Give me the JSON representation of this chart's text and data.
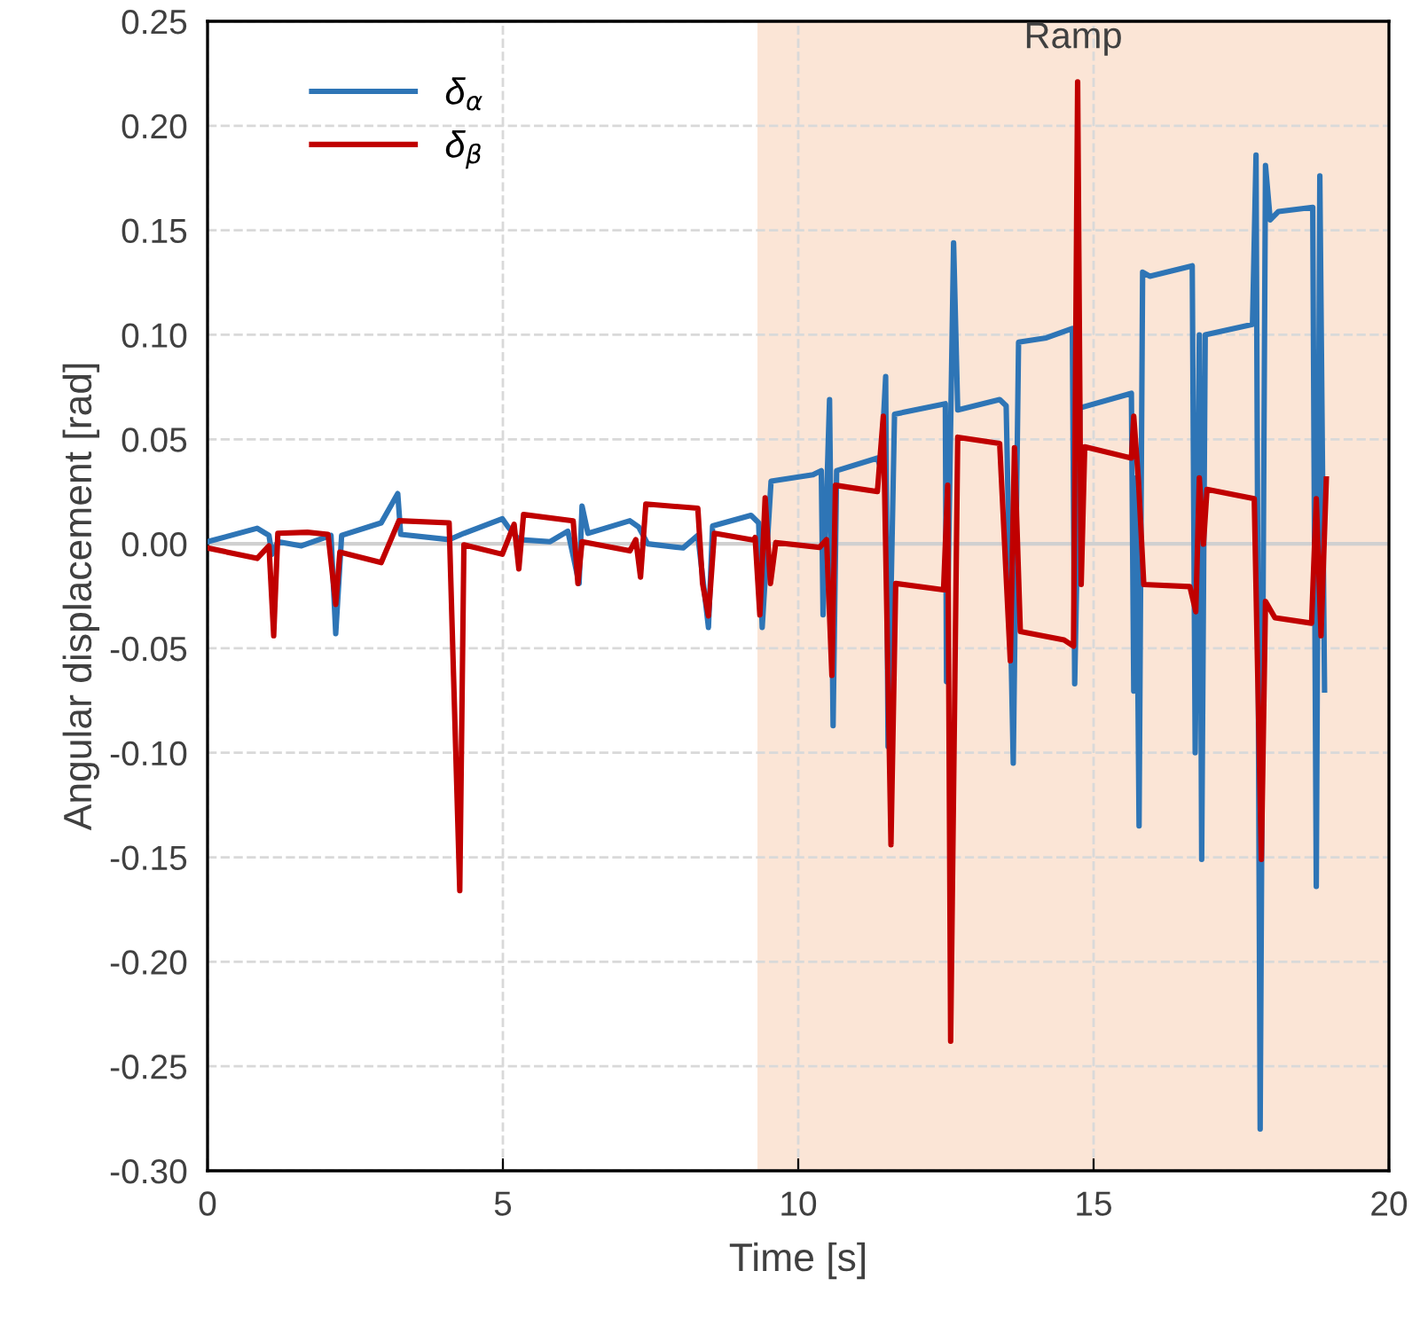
{
  "chart_data": {
    "type": "line",
    "xlabel": "Time [s]",
    "ylabel": "Angular displacement [rad]",
    "xlim": [
      0,
      20
    ],
    "xticks": [
      0,
      5,
      10,
      15,
      20
    ],
    "ylim": [
      -0.3,
      0.25
    ],
    "yticks": [
      {
        "value": -0.3,
        "label": "-0.30"
      },
      {
        "value": -0.25,
        "label": "-0.25"
      },
      {
        "value": -0.2,
        "label": "-0.20"
      },
      {
        "value": -0.15,
        "label": "-0.15"
      },
      {
        "value": -0.1,
        "label": "-0.10"
      },
      {
        "value": -0.05,
        "label": "-0.05"
      },
      {
        "value": 0,
        "label": "0.00"
      },
      {
        "value": 0.05,
        "label": "0.05"
      },
      {
        "value": 0.1,
        "label": "0.10"
      },
      {
        "value": 0.15,
        "label": "0.15"
      },
      {
        "value": 0.2,
        "label": "0.20"
      },
      {
        "value": 0.25,
        "label": "0.25"
      }
    ],
    "grid": true,
    "legend": "top left",
    "line_style": "solid",
    "marker": "none",
    "bands": [
      {
        "axis": "x",
        "from": 9.31,
        "to": 20,
        "label": "Ramp",
        "color": "#fbe5d6"
      }
    ],
    "ref_lines": [
      {
        "axis": "y",
        "value": 0,
        "label": null,
        "color": "#d0d0d0",
        "line_style": "solid"
      }
    ],
    "series": [
      {
        "name": "δ$_{α}$",
        "color": "#2e75b6",
        "x": [
          0,
          0.84,
          1.04,
          1.09,
          1.19,
          1.59,
          2.09,
          2.17,
          2.27,
          2.94,
          3.22,
          3.27,
          4.09,
          4.34,
          4.99,
          5.09,
          5.27,
          5.8,
          6.1,
          6.29,
          6.34,
          6.44,
          7.15,
          7.3,
          7.45,
          8.05,
          8.3,
          8.48,
          8.55,
          9.2,
          9.33,
          9.39,
          9.54,
          10.25,
          10.39,
          10.42,
          10.53,
          10.59,
          10.65,
          11.34,
          11.4,
          11.48,
          11.52,
          11.63,
          12.49,
          12.51,
          12.63,
          12.7,
          13.41,
          13.52,
          13.64,
          13.73,
          14.2,
          14.64,
          14.68,
          14.77,
          15.64,
          15.68,
          15.72,
          15.77,
          15.83,
          15.95,
          16.67,
          16.72,
          16.79,
          16.83,
          16.89,
          17.69,
          17.75,
          17.82,
          17.91,
          17.99,
          18.13,
          18.71,
          18.77,
          18.83,
          18.91
        ],
        "values": [
          0.001,
          0.0074,
          0.004,
          -0.005,
          0.001,
          -0.001,
          0.004,
          -0.043,
          0.004,
          0.01,
          0.024,
          0.0045,
          0.002,
          0.005,
          0.012,
          0.008,
          0.002,
          0.001,
          0.006,
          -0.019,
          0.018,
          0.005,
          0.011,
          0.008,
          0.0,
          -0.002,
          0.004,
          -0.04,
          0.0085,
          0.0136,
          0.01,
          -0.04,
          0.03,
          0.033,
          0.035,
          -0.034,
          0.069,
          -0.087,
          0.035,
          0.041,
          0.036,
          0.08,
          -0.097,
          0.062,
          0.067,
          -0.066,
          0.144,
          0.064,
          0.069,
          0.066,
          -0.105,
          0.0965,
          0.0985,
          0.103,
          -0.067,
          0.065,
          0.072,
          -0.0705,
          0.0315,
          -0.135,
          0.13,
          0.128,
          0.133,
          -0.1,
          0.1,
          -0.151,
          0.1,
          0.105,
          0.186,
          -0.28,
          0.181,
          0.155,
          0.159,
          0.161,
          -0.164,
          0.176,
          -0.07
        ]
      },
      {
        "name": "δ$_{β}$",
        "color": "#c00000",
        "x": [
          0,
          0.84,
          1.04,
          1.12,
          1.19,
          1.69,
          2.04,
          2.17,
          2.24,
          2.94,
          3.24,
          4.09,
          4.27,
          4.34,
          4.99,
          5.19,
          5.27,
          5.35,
          6.19,
          6.27,
          6.34,
          7.15,
          7.25,
          7.33,
          7.42,
          8.3,
          8.38,
          8.48,
          8.58,
          9.25,
          9.27,
          9.35,
          9.44,
          9.53,
          9.62,
          10.36,
          10.48,
          10.57,
          10.63,
          11.34,
          11.44,
          11.57,
          11.65,
          12.46,
          12.53,
          12.58,
          12.7,
          13.41,
          13.59,
          13.66,
          13.76,
          14.5,
          14.66,
          14.73,
          14.79,
          14.85,
          15.64,
          15.68,
          15.76,
          15.85,
          16.63,
          16.73,
          16.79,
          16.86,
          16.92,
          17.72,
          17.84,
          17.91,
          18.07,
          18.69,
          18.77,
          18.85,
          18.94
        ],
        "values": [
          -0.002,
          -0.007,
          -0.001,
          -0.044,
          0.005,
          0.0055,
          0.0045,
          -0.029,
          -0.004,
          -0.009,
          0.011,
          0.01,
          -0.166,
          -0.0005,
          -0.005,
          0.0093,
          -0.012,
          0.014,
          0.011,
          -0.019,
          0.001,
          -0.0034,
          0.002,
          -0.016,
          0.019,
          0.017,
          -0.019,
          -0.0345,
          0.005,
          0.0017,
          0.003,
          -0.034,
          0.022,
          -0.019,
          0.0006,
          -0.0017,
          0.002,
          -0.063,
          0.028,
          0.025,
          0.061,
          -0.144,
          -0.019,
          -0.022,
          0.028,
          -0.238,
          0.051,
          0.048,
          -0.056,
          0.046,
          -0.042,
          -0.046,
          -0.049,
          0.221,
          -0.0195,
          0.0464,
          0.041,
          0.061,
          0.03,
          -0.0195,
          -0.0205,
          -0.0325,
          0.0315,
          -0.0002,
          0.026,
          0.0216,
          -0.151,
          -0.0276,
          -0.0354,
          -0.038,
          0.0216,
          -0.044,
          0.031
        ]
      }
    ]
  }
}
